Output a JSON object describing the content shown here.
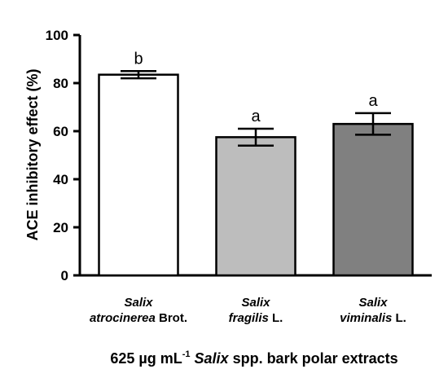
{
  "chart_data": {
    "type": "bar",
    "categories": [
      {
        "italic": "Salix",
        "italic2": "atrocinerea",
        "suffix": " Brot."
      },
      {
        "italic": "Salix",
        "italic2": "fragilis",
        "suffix": " L."
      },
      {
        "italic": "Salix",
        "italic2": "viminalis",
        "suffix": " L."
      }
    ],
    "values": [
      83.5,
      57.5,
      63
    ],
    "errors": [
      1.5,
      3.5,
      4.5
    ],
    "significance": [
      "b",
      "a",
      "a"
    ],
    "colors": [
      "#ffffff",
      "#bdbdbd",
      "#808080"
    ],
    "ylabel": "ACE inhibitory effect (%)",
    "xlabel": {
      "pre": "625 µg mL",
      "sup": "-1",
      "italic": "Salix",
      "post": " spp. bark polar extracts"
    },
    "ylim": [
      0,
      100
    ],
    "yticks": [
      0,
      20,
      40,
      60,
      80,
      100
    ],
    "grid": false
  }
}
